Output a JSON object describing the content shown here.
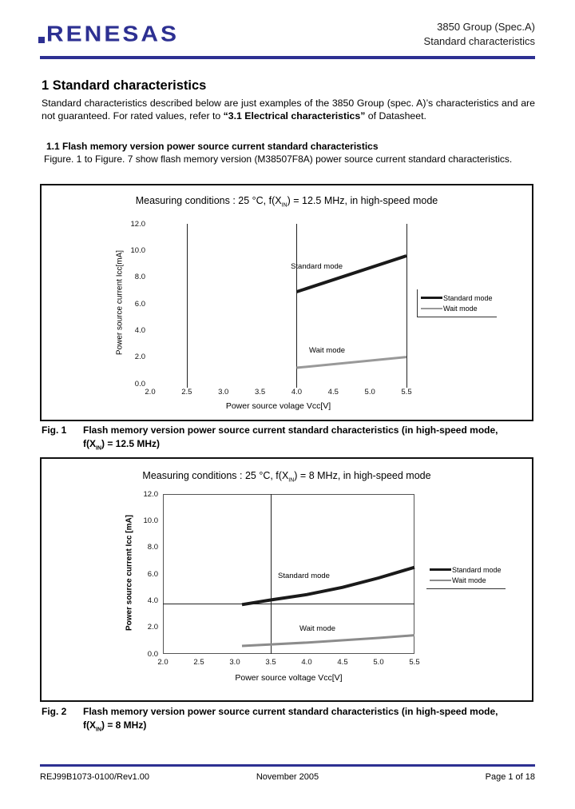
{
  "page": {
    "header": {
      "logo_text": "RENESAS",
      "product": "3850 Group (Spec.A)",
      "subtitle": "Standard characteristics",
      "accent_color": "#2d3092"
    },
    "section": {
      "heading": "1 Standard characteristics",
      "body_pre": "Standard characteristics described below are just examples of the 3850 Group (spec. A)’s characteristics and are not guaranteed. For rated values, refer to ",
      "body_bold": "“3.1 Electrical characteristics”",
      "body_post": " of Datasheet."
    },
    "subsection": {
      "heading": "1.1 Flash memory version power source current standard characteristics",
      "body": "Figure. 1 to Figure. 7 show flash memory version (M38507F8A) power source current standard characteristics."
    },
    "footer": {
      "doc_number": "REJ99B1073-0100/Rev1.00",
      "date": "November 2005",
      "page": "Page 1 of 18"
    }
  },
  "chart_data": [
    {
      "type": "line",
      "title_pre": "Measuring conditions : 25 °C, f(X",
      "title_sub": "IN",
      "title_post": ") = 12.5 MHz, in high-speed mode",
      "xlabel": "Power source volage Vcc[V]",
      "ylabel": "Power source current Icc[mA]",
      "xlim": [
        2.0,
        5.5
      ],
      "ylim": [
        0.0,
        12.0
      ],
      "xticks": [
        "2.0",
        "2.5",
        "3.0",
        "3.5",
        "4.0",
        "4.5",
        "5.0",
        "5.5"
      ],
      "yticks": [
        "12.0",
        "10.0",
        "8.0",
        "6.0",
        "4.0",
        "2.0",
        "0.0"
      ],
      "grid_vlines_x": [
        2.5,
        4.0,
        5.5
      ],
      "grid_hlines_y": [],
      "plot_border": false,
      "ylabel_bold": false,
      "legend_position": "right",
      "series": [
        {
          "name": "Standard mode",
          "color": "#1a1a1a",
          "width": 4,
          "points": [
            [
              4.0,
              6.9
            ],
            [
              5.5,
              9.6
            ]
          ],
          "label_at": [
            3.92,
            9.15
          ]
        },
        {
          "name": "Wait mode",
          "color": "#999999",
          "width": 3,
          "points": [
            [
              4.0,
              1.2
            ],
            [
              5.5,
              2.0
            ]
          ],
          "label_at": [
            4.17,
            2.8
          ]
        }
      ],
      "caption_fig": "Fig. 1",
      "caption_line1": "Flash memory version power source current standard characteristics (in high-speed mode,",
      "caption_line2_pre": "f(X",
      "caption_sub": "IN",
      "caption_line2_post": ") = 12.5 MHz)"
    },
    {
      "type": "line",
      "title_pre": "Measuring conditions : 25 °C, f(X",
      "title_sub": "IN",
      "title_post": ") = 8 MHz, in high-speed mode",
      "xlabel": "Power source voltage Vcc[V]",
      "ylabel": "Power source current Icc [mA]",
      "xlim": [
        2.0,
        5.5
      ],
      "ylim": [
        0.0,
        12.0
      ],
      "xticks": [
        "2.0",
        "2.5",
        "3.0",
        "3.5",
        "4.0",
        "4.5",
        "5.0",
        "5.5"
      ],
      "yticks": [
        "12.0",
        "10.0",
        "8.0",
        "6.0",
        "4.0",
        "2.0",
        "0.0"
      ],
      "grid_vlines_x": [
        3.5
      ],
      "grid_hlines_y": [
        3.8
      ],
      "plot_border": true,
      "ylabel_bold": true,
      "legend_position": "right",
      "series": [
        {
          "name": "Standard mode",
          "color": "#1a1a1a",
          "width": 4,
          "points": [
            [
              3.1,
              3.7
            ],
            [
              3.5,
              4.05
            ],
            [
              4.0,
              4.45
            ],
            [
              4.5,
              5.0
            ],
            [
              5.0,
              5.7
            ],
            [
              5.5,
              6.5
            ]
          ],
          "label_at": [
            3.6,
            6.2
          ]
        },
        {
          "name": "Wait mode",
          "color": "#8c8c8c",
          "width": 3,
          "points": [
            [
              3.1,
              0.6
            ],
            [
              4.0,
              0.85
            ],
            [
              5.0,
              1.2
            ],
            [
              5.5,
              1.4
            ]
          ],
          "label_at": [
            3.9,
            2.2
          ]
        }
      ],
      "caption_fig": "Fig. 2",
      "caption_line1": "Flash memory version power source current standard characteristics (in high-speed mode,",
      "caption_line2_pre": "f(X",
      "caption_sub": "IN",
      "caption_line2_post": ") = 8 MHz)"
    }
  ]
}
